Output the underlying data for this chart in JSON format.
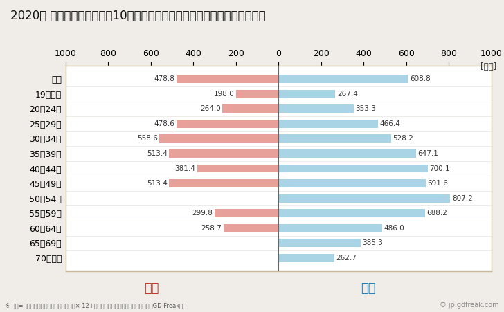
{
  "title": "2020年 民間企業（従業者数10人以上）フルタイム労働者の男女別平均年収",
  "unit_label": "[万円]",
  "footnote": "※ 年収=「きまって支給する現金給与額」× 12+「年間賞与その他特別給与額」としてGD Freak推計",
  "watermark": "© jp.gdfreak.com",
  "categories": [
    "全体",
    "19歳以下",
    "20～24歳",
    "25～29歳",
    "30～34歳",
    "35～39歳",
    "40～44歳",
    "45～49歳",
    "50～54歳",
    "55～59歳",
    "60～64歳",
    "65～69歳",
    "70歳以上"
  ],
  "female_values": [
    478.8,
    198.0,
    264.0,
    478.6,
    558.6,
    513.4,
    381.4,
    513.4,
    0.0,
    299.8,
    258.7,
    0.0,
    0.0
  ],
  "male_values": [
    608.8,
    267.4,
    353.3,
    466.4,
    528.2,
    647.1,
    700.1,
    691.6,
    807.2,
    688.2,
    486.0,
    385.3,
    262.7
  ],
  "female_color": "#e8a09a",
  "male_color": "#a8d4e6",
  "female_label": "女性",
  "male_label": "男性",
  "female_label_color": "#c0392b",
  "male_label_color": "#2980b9",
  "xlim": 1000,
  "bg_color": "#f0ede8",
  "plot_bg_color": "#ffffff",
  "border_color": "#c8b89a",
  "title_fontsize": 12,
  "tick_fontsize": 9,
  "label_fontsize": 9,
  "bar_height": 0.55
}
